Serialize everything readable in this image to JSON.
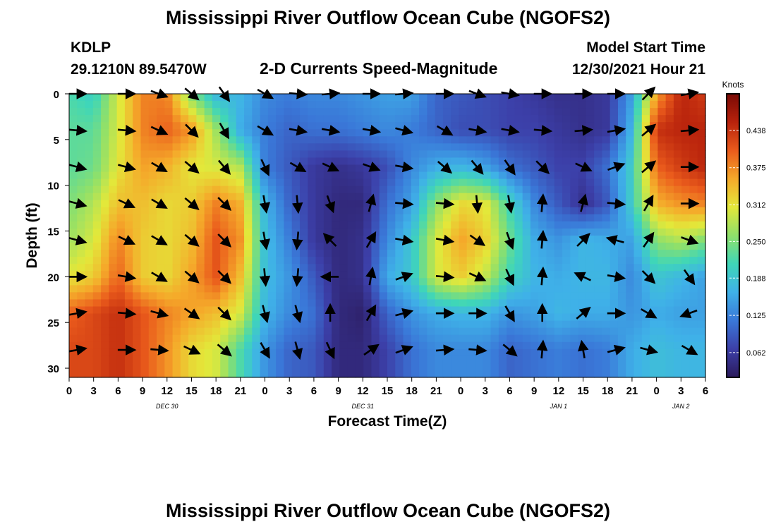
{
  "title": "Mississippi River Outflow Ocean Cube (NGOFS2)",
  "title_repeat": "Mississippi River Outflow Ocean Cube (NGOFS2)",
  "station": "KDLP",
  "coords": "29.1210N  89.5470W",
  "subtitle": "2-D Currents Speed-Magnitude",
  "model_start_label": "Model Start Time",
  "model_start_value": "12/30/2021 Hour 21",
  "chart_data": {
    "type": "heatmap",
    "xlabel": "Forecast Time(Z)",
    "ylabel": "Depth (ft)",
    "x_tick_labels": [
      "0",
      "3",
      "6",
      "9",
      "12",
      "15",
      "18",
      "21",
      "0",
      "3",
      "6",
      "9",
      "12",
      "15",
      "18",
      "21",
      "0",
      "3",
      "6",
      "9",
      "12",
      "15",
      "18",
      "21",
      "0",
      "3",
      "6"
    ],
    "x_range_hours": [
      0,
      78
    ],
    "date_labels": [
      {
        "label": "DEC 30",
        "hour": 12
      },
      {
        "label": "DEC 31",
        "hour": 36
      },
      {
        "label": "JAN 1",
        "hour": 60
      },
      {
        "label": "JAN 2",
        "hour": 75
      }
    ],
    "y_tick_labels": [
      "0",
      "5",
      "10",
      "15",
      "20",
      "25",
      "30"
    ],
    "y_range_ft": [
      0,
      31
    ],
    "y_inverted": true,
    "colorbar": {
      "unit": "Knots",
      "range": [
        0.02,
        0.5
      ],
      "tick_labels": [
        "0.438",
        "0.375",
        "0.312",
        "0.250",
        "0.188",
        "0.125",
        "0.062"
      ],
      "tick_values": [
        0.438,
        0.375,
        0.312,
        0.25,
        0.188,
        0.125,
        0.062
      ],
      "colors": [
        "#2b1a5c",
        "#3c3fa8",
        "#3a78d8",
        "#3fb1e8",
        "#3fd6b8",
        "#8fe06a",
        "#e3e83a",
        "#f5a92a",
        "#ea5b1c",
        "#b8220c",
        "#7a0a05"
      ]
    },
    "depths_ft": [
      0,
      4,
      8,
      12,
      16,
      20,
      24,
      28
    ],
    "speed_cols": [
      {
        "hour": 0,
        "values": [
          0.22,
          0.23,
          0.23,
          0.25,
          0.27,
          0.31,
          0.4,
          0.42
        ]
      },
      {
        "hour": 3,
        "values": [
          0.2,
          0.23,
          0.24,
          0.28,
          0.3,
          0.33,
          0.42,
          0.42
        ]
      },
      {
        "hour": 6,
        "values": [
          0.3,
          0.3,
          0.31,
          0.34,
          0.38,
          0.4,
          0.44,
          0.44
        ]
      },
      {
        "hour": 9,
        "values": [
          0.38,
          0.38,
          0.36,
          0.34,
          0.33,
          0.33,
          0.41,
          0.41
        ]
      },
      {
        "hour": 12,
        "values": [
          0.38,
          0.4,
          0.35,
          0.32,
          0.32,
          0.32,
          0.38,
          0.37
        ]
      },
      {
        "hour": 15,
        "values": [
          0.25,
          0.37,
          0.31,
          0.33,
          0.34,
          0.36,
          0.36,
          0.32
        ]
      },
      {
        "hour": 18,
        "values": [
          0.17,
          0.27,
          0.3,
          0.38,
          0.41,
          0.41,
          0.34,
          0.3
        ]
      },
      {
        "hour": 21,
        "values": [
          0.17,
          0.16,
          0.28,
          0.35,
          0.37,
          0.34,
          0.3,
          0.22
        ]
      },
      {
        "hour": 24,
        "values": [
          0.13,
          0.12,
          0.12,
          0.17,
          0.18,
          0.18,
          0.17,
          0.14
        ]
      },
      {
        "hour": 27,
        "values": [
          0.12,
          0.1,
          0.09,
          0.1,
          0.12,
          0.14,
          0.13,
          0.1
        ]
      },
      {
        "hour": 30,
        "values": [
          0.13,
          0.11,
          0.06,
          0.06,
          0.06,
          0.09,
          0.11,
          0.09
        ]
      },
      {
        "hour": 33,
        "values": [
          0.13,
          0.11,
          0.05,
          0.04,
          0.04,
          0.04,
          0.04,
          0.04
        ]
      },
      {
        "hour": 36,
        "values": [
          0.14,
          0.12,
          0.06,
          0.04,
          0.05,
          0.05,
          0.03,
          0.04
        ]
      },
      {
        "hour": 39,
        "values": [
          0.15,
          0.13,
          0.08,
          0.11,
          0.13,
          0.16,
          0.1,
          0.07
        ]
      },
      {
        "hour": 42,
        "values": [
          0.15,
          0.12,
          0.13,
          0.15,
          0.19,
          0.19,
          0.14,
          0.11
        ]
      },
      {
        "hour": 45,
        "values": [
          0.1,
          0.1,
          0.16,
          0.26,
          0.3,
          0.3,
          0.16,
          0.13
        ]
      },
      {
        "hour": 48,
        "values": [
          0.09,
          0.08,
          0.17,
          0.32,
          0.36,
          0.33,
          0.17,
          0.13
        ]
      },
      {
        "hour": 51,
        "values": [
          0.08,
          0.08,
          0.15,
          0.31,
          0.33,
          0.29,
          0.17,
          0.13
        ]
      },
      {
        "hour": 54,
        "values": [
          0.07,
          0.07,
          0.11,
          0.21,
          0.24,
          0.21,
          0.14,
          0.1
        ]
      },
      {
        "hour": 57,
        "values": [
          0.06,
          0.07,
          0.09,
          0.13,
          0.16,
          0.17,
          0.15,
          0.11
        ]
      },
      {
        "hour": 60,
        "values": [
          0.05,
          0.06,
          0.07,
          0.09,
          0.14,
          0.16,
          0.17,
          0.12
        ]
      },
      {
        "hour": 63,
        "values": [
          0.05,
          0.05,
          0.07,
          0.05,
          0.17,
          0.17,
          0.16,
          0.11
        ]
      },
      {
        "hour": 66,
        "values": [
          0.06,
          0.06,
          0.11,
          0.09,
          0.16,
          0.17,
          0.16,
          0.12
        ]
      },
      {
        "hour": 69,
        "values": [
          0.15,
          0.17,
          0.2,
          0.2,
          0.15,
          0.13,
          0.14,
          0.16
        ]
      },
      {
        "hour": 72,
        "values": [
          0.36,
          0.44,
          0.4,
          0.35,
          0.26,
          0.19,
          0.16,
          0.18
        ]
      },
      {
        "hour": 75,
        "values": [
          0.45,
          0.45,
          0.43,
          0.37,
          0.28,
          0.17,
          0.15,
          0.17
        ]
      },
      {
        "hour": 78,
        "values": [
          0.43,
          0.45,
          0.45,
          0.38,
          0.25,
          0.15,
          0.15,
          0.17
        ]
      }
    ],
    "vector_rows_ft": [
      0,
      4,
      8,
      12,
      16,
      20,
      24,
      28
    ],
    "vector_dirs_deg": [
      {
        "hour": 1,
        "dirs": [
          0,
          5,
          15,
          15,
          15,
          0,
          -10,
          -10
        ]
      },
      {
        "hour": 7,
        "dirs": [
          0,
          5,
          15,
          25,
          25,
          10,
          5,
          0
        ]
      },
      {
        "hour": 11,
        "dirs": [
          20,
          25,
          30,
          30,
          30,
          30,
          15,
          5
        ]
      },
      {
        "hour": 15,
        "dirs": [
          40,
          45,
          40,
          40,
          40,
          40,
          35,
          25
        ]
      },
      {
        "hour": 19,
        "dirs": [
          55,
          60,
          50,
          45,
          45,
          45,
          45,
          40
        ]
      },
      {
        "hour": 24,
        "dirs": [
          30,
          30,
          65,
          80,
          80,
          85,
          75,
          60
        ]
      },
      {
        "hour": 28,
        "dirs": [
          5,
          10,
          30,
          85,
          95,
          95,
          75,
          75
        ]
      },
      {
        "hour": 32,
        "dirs": [
          -5,
          10,
          25,
          70,
          -135,
          180,
          -90,
          65
        ]
      },
      {
        "hour": 37,
        "dirs": [
          0,
          10,
          20,
          -75,
          -60,
          -80,
          -60,
          -35
        ]
      },
      {
        "hour": 41,
        "dirs": [
          -5,
          15,
          10,
          5,
          10,
          -20,
          -15,
          -20
        ]
      },
      {
        "hour": 46,
        "dirs": [
          0,
          30,
          40,
          5,
          10,
          5,
          0,
          -5
        ]
      },
      {
        "hour": 50,
        "dirs": [
          20,
          10,
          50,
          85,
          35,
          25,
          0,
          5
        ]
      },
      {
        "hour": 54,
        "dirs": [
          10,
          10,
          55,
          80,
          70,
          65,
          60,
          40
        ]
      },
      {
        "hour": 58,
        "dirs": [
          0,
          5,
          45,
          -85,
          -85,
          -85,
          -90,
          -85
        ]
      },
      {
        "hour": 63,
        "dirs": [
          0,
          -5,
          25,
          -75,
          -45,
          -155,
          -40,
          -100
        ]
      },
      {
        "hour": 67,
        "dirs": [
          0,
          -10,
          -20,
          5,
          -165,
          10,
          0,
          -15
        ]
      },
      {
        "hour": 71,
        "dirs": [
          -45,
          -40,
          -40,
          -60,
          -55,
          45,
          30,
          15
        ]
      },
      {
        "hour": 76,
        "dirs": [
          -10,
          -5,
          0,
          0,
          20,
          55,
          160,
          30
        ]
      }
    ]
  }
}
